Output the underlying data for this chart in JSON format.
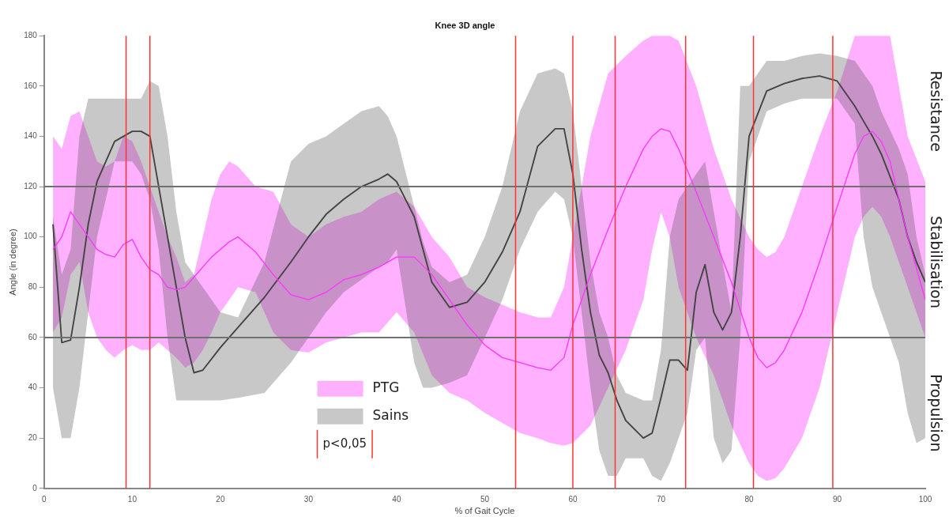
{
  "chart_data": {
    "type": "line",
    "title": "Knee 3D angle",
    "xlabel": "% of Gait Cycle",
    "ylabel": "Angle (in degree)",
    "xlim": [
      0,
      100
    ],
    "xticks": [
      0,
      10,
      20,
      30,
      40,
      50,
      60,
      70,
      80,
      90,
      100
    ],
    "ylim": [
      0,
      180
    ],
    "yticks": [
      0,
      20,
      40,
      60,
      80,
      100,
      120,
      140,
      160,
      180
    ],
    "legend": "bottom",
    "marker": "none",
    "line_style": "solid",
    "series": [
      {
        "name": "PTG",
        "color": "#ff33ff",
        "x": [
          1,
          2,
          3,
          4,
          5,
          6,
          7,
          8,
          9,
          10,
          11,
          12,
          13,
          14,
          15,
          16,
          17,
          18,
          19,
          20,
          21,
          22,
          24,
          26,
          28,
          30,
          32,
          34,
          36,
          38,
          40,
          42,
          44,
          46,
          48,
          50,
          52,
          54,
          56,
          57.5,
          59,
          60,
          62,
          64,
          66,
          68,
          69,
          70,
          71,
          72,
          74,
          76,
          78,
          80,
          81,
          82,
          83,
          84,
          86,
          88,
          90,
          92,
          93,
          94,
          95,
          96,
          98,
          100
        ],
        "values": [
          95,
          100,
          110,
          105,
          100,
          95,
          93,
          92,
          97,
          99,
          92,
          87,
          85,
          80,
          79,
          80,
          84,
          88,
          92,
          95,
          98,
          100,
          94,
          85,
          77,
          75,
          78,
          83,
          85,
          88,
          92,
          92,
          85,
          75,
          65,
          57,
          52,
          50,
          48,
          47,
          52,
          65,
          85,
          103,
          120,
          135,
          140,
          143,
          142,
          135,
          118,
          100,
          82,
          60,
          52,
          48,
          50,
          55,
          70,
          90,
          112,
          133,
          140,
          142,
          138,
          130,
          100,
          75
        ],
        "lower": [
          62,
          68,
          85,
          90,
          70,
          60,
          55,
          52,
          55,
          57,
          55,
          55,
          58,
          55,
          52,
          48,
          50,
          55,
          62,
          70,
          75,
          80,
          78,
          62,
          55,
          54,
          58,
          60,
          62,
          62,
          70,
          62,
          45,
          38,
          35,
          30,
          26,
          22,
          20,
          18,
          17,
          18,
          25,
          40,
          55,
          75,
          95,
          110,
          100,
          80,
          60,
          45,
          25,
          10,
          5,
          3,
          4,
          8,
          20,
          40,
          70,
          100,
          108,
          112,
          108,
          100,
          80,
          60
        ],
        "upper": [
          140,
          135,
          148,
          150,
          140,
          130,
          128,
          130,
          140,
          138,
          130,
          120,
          110,
          100,
          92,
          82,
          85,
          100,
          115,
          125,
          130,
          128,
          120,
          118,
          105,
          100,
          105,
          108,
          110,
          115,
          118,
          112,
          100,
          92,
          80,
          76,
          73,
          70,
          68,
          68,
          80,
          100,
          140,
          165,
          172,
          178,
          180,
          180,
          180,
          178,
          160,
          135,
          115,
          100,
          95,
          92,
          94,
          100,
          120,
          140,
          158,
          180,
          180,
          180,
          180,
          180,
          140,
          122
        ]
      },
      {
        "name": "Sains",
        "color": "#444444",
        "x": [
          1,
          2,
          3,
          4,
          5,
          6,
          8,
          10,
          11,
          12,
          13,
          14,
          15,
          16,
          17,
          18,
          20,
          22,
          25,
          28,
          30,
          32,
          34,
          36,
          38,
          39,
          40,
          42,
          43,
          44,
          46,
          48,
          50,
          52,
          54,
          56,
          58,
          59,
          60,
          61,
          62,
          63,
          64,
          65,
          66,
          68,
          69,
          70,
          71,
          72,
          73,
          74,
          75,
          76,
          77,
          78,
          79,
          80,
          82,
          84,
          86,
          88,
          90,
          92,
          93,
          94,
          95,
          97,
          98,
          99,
          100
        ],
        "values": [
          105,
          58,
          59,
          80,
          105,
          122,
          138,
          142,
          142,
          140,
          120,
          100,
          80,
          60,
          46,
          47,
          56,
          64,
          76,
          90,
          100,
          109,
          115,
          120,
          123,
          125,
          122,
          108,
          95,
          82,
          72,
          74,
          82,
          94,
          110,
          136,
          143,
          143,
          125,
          95,
          70,
          53,
          46,
          35,
          27,
          20,
          22,
          36,
          51,
          51,
          47,
          78,
          89,
          70,
          63,
          70,
          100,
          140,
          158,
          161,
          163,
          164,
          162,
          152,
          146,
          140,
          133,
          115,
          100,
          90,
          82
        ],
        "lower": [
          40,
          20,
          20,
          40,
          70,
          100,
          130,
          130,
          125,
          115,
          95,
          60,
          35,
          35,
          35,
          35,
          35,
          36,
          38,
          50,
          60,
          70,
          78,
          83,
          88,
          90,
          95,
          50,
          40,
          40,
          42,
          45,
          60,
          75,
          95,
          110,
          118,
          115,
          100,
          70,
          40,
          15,
          5,
          5,
          12,
          12,
          5,
          3,
          10,
          20,
          30,
          55,
          60,
          20,
          10,
          15,
          60,
          130,
          150,
          153,
          155,
          155,
          155,
          145,
          100,
          80,
          70,
          50,
          30,
          18,
          20
        ],
        "upper": [
          108,
          85,
          95,
          140,
          155,
          155,
          155,
          155,
          155,
          162,
          160,
          140,
          110,
          90,
          85,
          80,
          70,
          68,
          90,
          130,
          137,
          140,
          145,
          150,
          152,
          148,
          140,
          112,
          98,
          88,
          82,
          85,
          100,
          120,
          150,
          165,
          167,
          165,
          150,
          120,
          90,
          70,
          60,
          45,
          38,
          35,
          35,
          55,
          100,
          115,
          120,
          125,
          130,
          110,
          90,
          70,
          160,
          160,
          170,
          170,
          172,
          173,
          172,
          170,
          165,
          160,
          150,
          135,
          125,
          100,
          85
        ]
      }
    ],
    "ref_lines": [
      {
        "axis": "y",
        "value": 60,
        "color": "#707070"
      },
      {
        "axis": "y",
        "value": 120,
        "color": "#707070"
      },
      {
        "axis": "x",
        "value": 9.3,
        "color": "#ff3333"
      },
      {
        "axis": "x",
        "value": 12,
        "color": "#ff3333"
      },
      {
        "axis": "x",
        "value": 53.5,
        "color": "#ff3333"
      },
      {
        "axis": "x",
        "value": 60,
        "color": "#ff3333"
      },
      {
        "axis": "x",
        "value": 64.8,
        "color": "#ff3333"
      },
      {
        "axis": "x",
        "value": 72.8,
        "color": "#ff3333"
      },
      {
        "axis": "x",
        "value": 80.5,
        "color": "#ff3333"
      },
      {
        "axis": "x",
        "value": 89.5,
        "color": "#ff3333"
      }
    ],
    "annotations": [
      "Resistance",
      "Stabilisation",
      "Propulsion",
      "p<0,05"
    ]
  }
}
